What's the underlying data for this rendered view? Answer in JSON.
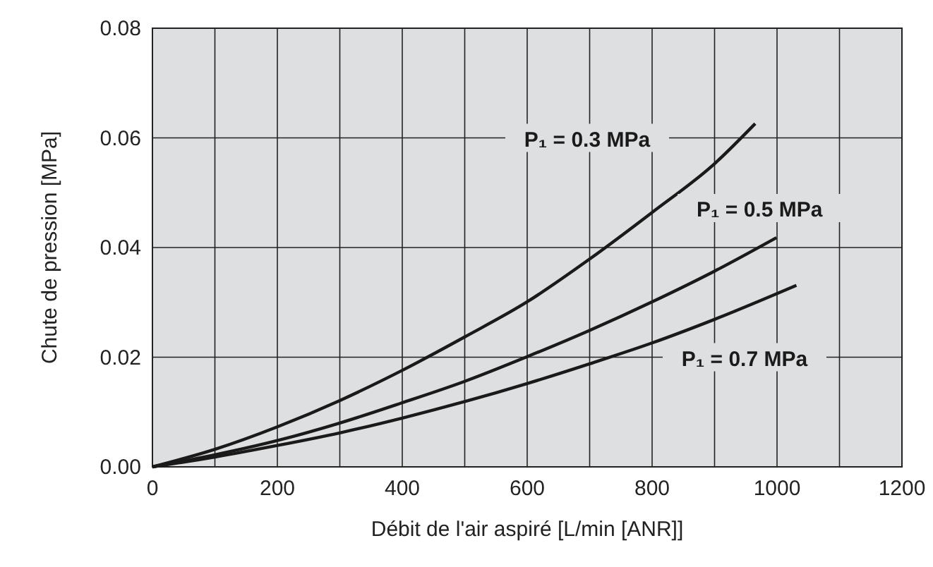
{
  "chart_data": {
    "type": "line",
    "xlabel": "Débit de l'air aspiré [L/min [ANR]]",
    "ylabel": "Chute de pression [MPa]",
    "xlim": [
      0,
      1200
    ],
    "ylim": [
      0,
      0.08
    ],
    "xticks": [
      0,
      {
        "value": 100,
        "label": null
      },
      200,
      {
        "value": 300,
        "label": null
      },
      400,
      {
        "value": 500,
        "label": null
      },
      600,
      {
        "value": 700,
        "label": null
      },
      800,
      {
        "value": 900,
        "label": null
      },
      1000,
      {
        "value": 1100,
        "label": null
      },
      1200
    ],
    "yticks": [
      {
        "value": 0,
        "label": "0.00"
      },
      {
        "value": 0.02,
        "label": "0.02"
      },
      {
        "value": 0.04,
        "label": "0.04"
      },
      {
        "value": 0.06,
        "label": "0.06"
      },
      {
        "value": 0.08,
        "label": "0.08"
      }
    ],
    "grid": true,
    "marker": "none",
    "line_style": "solid",
    "series": [
      {
        "name": "P₁ = 0.3 MPa",
        "color": "#1a1a1a",
        "x": [
          0,
          100,
          200,
          300,
          400,
          500,
          600,
          700,
          800,
          900,
          965
        ],
        "values": [
          0,
          0.0032,
          0.0073,
          0.0121,
          0.0176,
          0.0237,
          0.0301,
          0.0379,
          0.0464,
          0.0553,
          0.0626
        ]
      },
      {
        "name": "P₁ = 0.5 MPa",
        "color": "#1a1a1a",
        "x": [
          0,
          100,
          200,
          300,
          400,
          500,
          600,
          700,
          800,
          900,
          999
        ],
        "values": [
          0,
          0.0022,
          0.0048,
          0.008,
          0.0117,
          0.0156,
          0.0201,
          0.0249,
          0.0301,
          0.0357,
          0.0418
        ]
      },
      {
        "name": "P₁ = 0.7 MPa",
        "color": "#1a1a1a",
        "x": [
          0,
          100,
          200,
          300,
          400,
          500,
          600,
          700,
          800,
          900,
          1031
        ],
        "values": [
          0,
          0.0018,
          0.0039,
          0.0062,
          0.0089,
          0.0119,
          0.0152,
          0.0188,
          0.0226,
          0.0269,
          0.0331
        ]
      }
    ]
  }
}
